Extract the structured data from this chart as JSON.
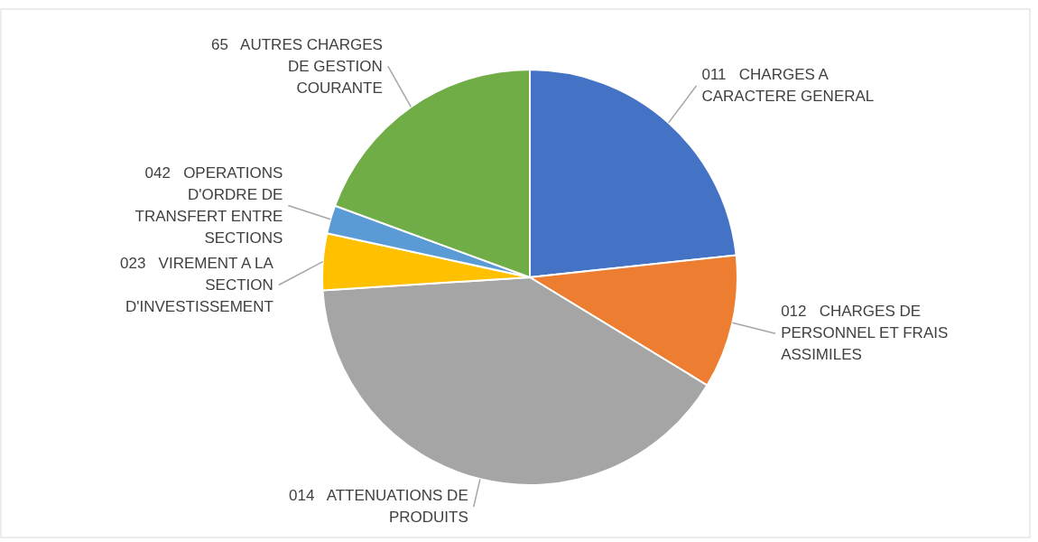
{
  "chart_data": {
    "type": "pie",
    "categories": [
      "011   CHARGES A CARACTERE GENERAL",
      "012   CHARGES DE PERSONNEL ET FRAIS ASSIMILES",
      "014   ATTENUATIONS DE PRODUITS",
      "023   VIREMENT A LA SECTION D'INVESTISSEMENT",
      "042   OPERATIONS D'ORDRE DE TRANSFERT ENTRE SECTIONS",
      "65   AUTRES CHARGES DE GESTION COURANTE"
    ],
    "values": [
      23.3,
      10.4,
      40.3,
      4.4,
      2.2,
      19.4
    ],
    "colors": [
      "#4472c4",
      "#ed7d31",
      "#a5a5a5",
      "#ffc000",
      "#5b9bd5",
      "#70ad47"
    ]
  }
}
